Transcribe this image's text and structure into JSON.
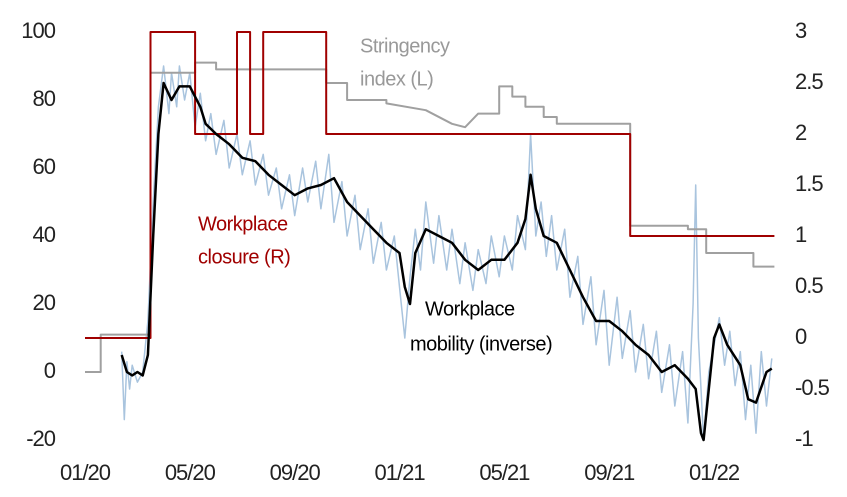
{
  "chart_data": {
    "type": "line",
    "xlim": [
      0,
      26.4
    ],
    "xticks": [
      {
        "value": 0,
        "label": "01/20"
      },
      {
        "value": 4,
        "label": "05/20"
      },
      {
        "value": 8,
        "label": "09/20"
      },
      {
        "value": 12,
        "label": "01/21"
      },
      {
        "value": 16,
        "label": "05/21"
      },
      {
        "value": 20,
        "label": "09/21"
      },
      {
        "value": 24,
        "label": "01/22"
      }
    ],
    "ylim": [
      -20,
      100
    ],
    "yticks": [
      -20,
      0,
      20,
      40,
      60,
      80,
      100
    ],
    "y2lim": [
      -1,
      3
    ],
    "y2ticks": [
      -1,
      -0.5,
      0,
      0.5,
      1,
      1.5,
      2,
      2.5,
      3
    ],
    "grid": false,
    "series": [
      {
        "color": "#a9c4de",
        "axis": "y",
        "x": [
          1.4,
          1.5,
          1.6,
          1.7,
          1.8,
          2.0,
          2.2,
          2.4,
          2.6,
          2.8,
          3.0,
          3.2,
          3.3,
          3.5,
          3.6,
          3.8,
          4.0,
          4.2,
          4.4,
          4.6,
          4.8,
          5.0,
          5.3,
          5.5,
          5.8,
          6.0,
          6.3,
          6.5,
          6.8,
          7.0,
          7.3,
          7.5,
          7.8,
          8.0,
          8.3,
          8.5,
          8.8,
          9.0,
          9.3,
          9.5,
          9.8,
          10.0,
          10.3,
          10.5,
          10.8,
          11.0,
          11.3,
          11.5,
          11.8,
          12.0,
          12.2,
          12.4,
          12.6,
          12.8,
          13.0,
          13.3,
          13.5,
          13.8,
          14.0,
          14.3,
          14.5,
          14.8,
          15.0,
          15.3,
          15.5,
          15.8,
          16.0,
          16.3,
          16.5,
          16.8,
          17.0,
          17.2,
          17.4,
          17.6,
          17.8,
          18.0,
          18.3,
          18.5,
          18.8,
          19.0,
          19.3,
          19.5,
          19.8,
          20.0,
          20.3,
          20.5,
          20.8,
          21.0,
          21.3,
          21.5,
          21.8,
          22.0,
          22.3,
          22.5,
          22.8,
          23.0,
          23.2,
          23.3,
          23.4,
          23.6,
          23.8,
          24.0,
          24.2,
          24.4,
          24.6,
          24.8,
          25.0,
          25.2,
          25.4,
          25.6,
          25.8,
          26.0,
          26.2
        ],
        "values": [
          6,
          -14,
          3,
          -5,
          2,
          -3,
          0,
          15,
          50,
          78,
          90,
          76,
          88,
          78,
          90,
          80,
          88,
          72,
          82,
          68,
          76,
          64,
          74,
          60,
          70,
          58,
          68,
          55,
          64,
          52,
          60,
          48,
          58,
          46,
          60,
          50,
          62,
          48,
          64,
          44,
          56,
          40,
          52,
          36,
          48,
          32,
          44,
          30,
          40,
          25,
          10,
          28,
          42,
          30,
          50,
          32,
          46,
          30,
          42,
          26,
          38,
          24,
          36,
          26,
          40,
          28,
          40,
          30,
          46,
          36,
          70,
          40,
          50,
          34,
          46,
          30,
          42,
          22,
          34,
          14,
          28,
          8,
          24,
          2,
          22,
          4,
          18,
          0,
          14,
          -2,
          12,
          -6,
          8,
          -10,
          6,
          -15,
          20,
          55,
          10,
          -20,
          0,
          8,
          16,
          2,
          12,
          -4,
          6,
          -14,
          2,
          -18,
          6,
          -10,
          4
        ]
      },
      {
        "color": "#a0a0a0",
        "axis": "y",
        "x": [
          0,
          0.6,
          0.6,
          2.5,
          2.5,
          4.2,
          4.2,
          5.0,
          5.0,
          9.2,
          9.2,
          10.0,
          10.0,
          11.5,
          11.5,
          13.0,
          14.0,
          14.5,
          15.0,
          15.8,
          15.8,
          16.3,
          16.3,
          16.8,
          16.8,
          17.5,
          17.5,
          18.0,
          18.0,
          20.8,
          20.8,
          23.0,
          23.0,
          23.7,
          23.7,
          25.5,
          25.5,
          26.3
        ],
        "values": [
          0,
          0,
          11,
          11,
          88,
          88,
          91,
          91,
          89,
          89,
          85,
          85,
          80,
          80,
          79,
          77,
          73,
          72,
          76,
          76,
          84,
          84,
          81,
          81,
          78,
          78,
          75,
          75,
          73,
          73,
          43,
          43,
          42,
          42,
          35,
          35,
          31,
          31
        ]
      },
      {
        "color": "#a00000",
        "axis": "y2",
        "x": [
          0,
          2.5,
          2.5,
          4.2,
          4.2,
          5.8,
          5.8,
          6.3,
          6.3,
          6.8,
          6.8,
          9.2,
          9.2,
          20.8,
          20.8,
          26.3
        ],
        "values": [
          0,
          0,
          3,
          3,
          2,
          2,
          3,
          3,
          2,
          2,
          3,
          3,
          2,
          2,
          1,
          1
        ]
      },
      {
        "color": "#000000",
        "axis": "y",
        "x": [
          1.4,
          1.6,
          1.8,
          2.0,
          2.2,
          2.4,
          2.6,
          2.8,
          3.0,
          3.3,
          3.6,
          4.0,
          4.4,
          4.6,
          5.0,
          5.5,
          6.0,
          6.5,
          7.0,
          7.5,
          8.0,
          8.5,
          9.0,
          9.5,
          10.0,
          10.5,
          11.0,
          11.5,
          12.0,
          12.2,
          12.4,
          12.6,
          13.0,
          13.5,
          14.0,
          14.5,
          15.0,
          15.5,
          16.0,
          16.5,
          16.8,
          17.0,
          17.2,
          17.5,
          18.0,
          18.5,
          19.0,
          19.5,
          20.0,
          20.5,
          21.0,
          21.5,
          22.0,
          22.5,
          23.0,
          23.3,
          23.5,
          23.6,
          23.8,
          24.0,
          24.2,
          24.5,
          25.0,
          25.3,
          25.6,
          26.0,
          26.2
        ],
        "values": [
          5,
          0,
          -1,
          0,
          -1,
          5,
          40,
          70,
          85,
          80,
          84,
          84,
          78,
          73,
          70,
          67,
          63,
          62,
          58,
          55,
          52,
          54,
          55,
          57,
          50,
          46,
          42,
          38,
          35,
          25,
          20,
          35,
          42,
          40,
          38,
          33,
          30,
          33,
          33,
          38,
          45,
          58,
          48,
          40,
          38,
          30,
          22,
          15,
          15,
          12,
          8,
          5,
          0,
          2,
          -2,
          -5,
          -18,
          -20,
          -5,
          10,
          14,
          8,
          2,
          -8,
          -9,
          0,
          1
        ]
      }
    ],
    "annotations": [
      {
        "lines": [
          "Stringency",
          "index (L)"
        ],
        "color": "#999999"
      },
      {
        "lines": [
          "Workplace",
          "closure (R)"
        ],
        "color": "#a00000"
      },
      {
        "lines": [
          "Workplace",
          "mobility (inverse)"
        ],
        "color": "#000000"
      }
    ]
  }
}
